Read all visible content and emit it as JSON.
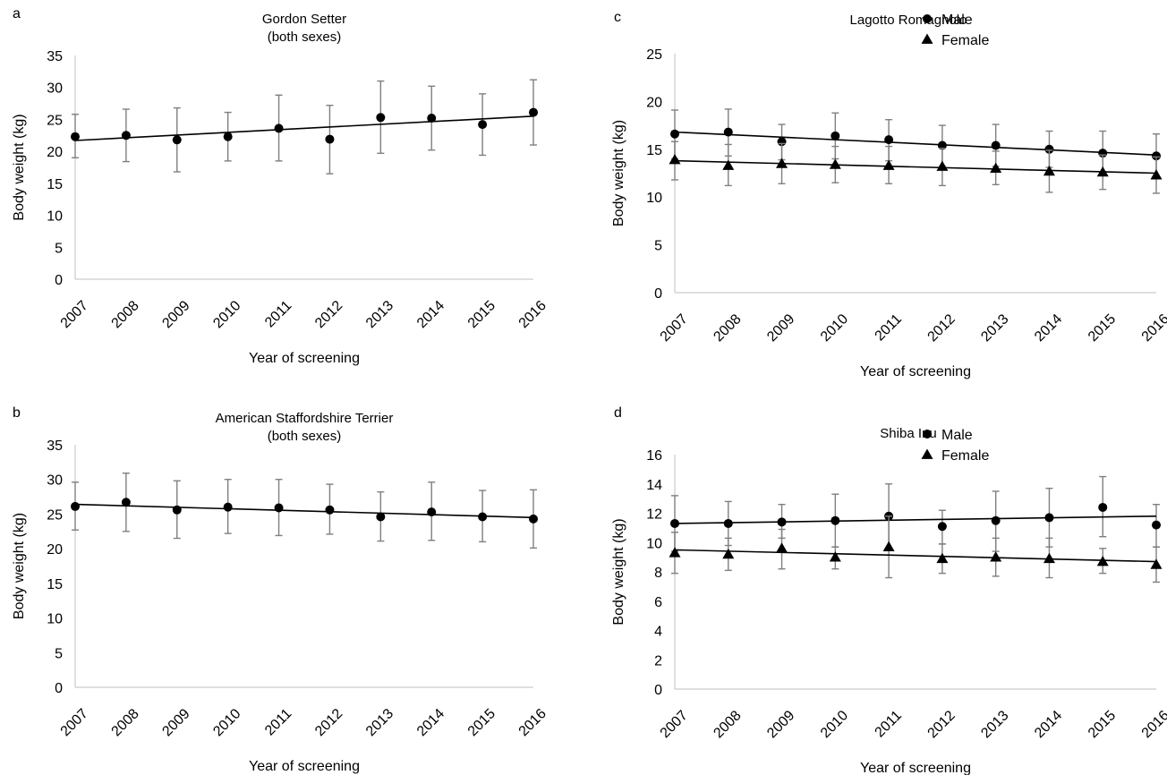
{
  "figure": {
    "panels": [
      {
        "letter": "a",
        "title_lines": [
          "Gordon Setter",
          "(both sexes)"
        ]
      },
      {
        "letter": "b",
        "title_lines": [
          "American Staffordshire Terrier",
          "(both sexes)"
        ]
      },
      {
        "letter": "c",
        "title_lines": [
          "Lagotto Romagnolo"
        ]
      },
      {
        "letter": "d",
        "title_lines": [
          "Shiba Inu"
        ]
      }
    ]
  },
  "chart_data": [
    {
      "type": "scatter",
      "panel": "a",
      "title": "Gordon Setter (both sexes)",
      "xlabel": "Year of screening",
      "ylabel": "Body weight (kg)",
      "ylim": [
        0,
        35
      ],
      "yticks": [
        0,
        5,
        10,
        15,
        20,
        25,
        30,
        35
      ],
      "categories": [
        "2007",
        "2008",
        "2009",
        "2010",
        "2011",
        "2012",
        "2013",
        "2014",
        "2015",
        "2016"
      ],
      "legend": "none",
      "grid": false,
      "error_bars": true,
      "trendline": "linear",
      "series": [
        {
          "marker": "circle",
          "values": [
            22.3,
            22.5,
            21.8,
            22.3,
            23.6,
            21.9,
            25.3,
            25.2,
            24.2,
            26.1
          ],
          "error_low": [
            19.0,
            18.4,
            16.8,
            18.5,
            18.5,
            16.5,
            19.7,
            20.2,
            19.4,
            21.0
          ],
          "error_high": [
            25.8,
            26.6,
            26.8,
            26.1,
            28.8,
            27.2,
            31.0,
            30.2,
            29.0,
            31.2
          ],
          "trend": [
            21.7,
            25.5
          ]
        }
      ]
    },
    {
      "type": "scatter",
      "panel": "b",
      "title": "American Staffordshire Terrier (both sexes)",
      "xlabel": "Year of screening",
      "ylabel": "Body weight (kg)",
      "ylim": [
        0,
        35
      ],
      "yticks": [
        0,
        5,
        10,
        15,
        20,
        25,
        30,
        35
      ],
      "categories": [
        "2007",
        "2008",
        "2009",
        "2010",
        "2011",
        "2012",
        "2013",
        "2014",
        "2015",
        "2016"
      ],
      "legend": "none",
      "grid": false,
      "error_bars": true,
      "trendline": "linear",
      "series": [
        {
          "marker": "circle",
          "values": [
            26.1,
            26.7,
            25.6,
            26.0,
            25.9,
            25.6,
            24.6,
            25.3,
            24.6,
            24.3
          ],
          "error_low": [
            22.7,
            22.5,
            21.5,
            22.2,
            21.9,
            22.1,
            21.1,
            21.2,
            21.0,
            20.1
          ],
          "error_high": [
            29.6,
            30.9,
            29.8,
            30.0,
            30.0,
            29.3,
            28.2,
            29.6,
            28.4,
            28.5
          ],
          "trend": [
            26.4,
            24.5
          ]
        }
      ]
    },
    {
      "type": "scatter",
      "panel": "c",
      "title": "Lagotto Romagnolo",
      "xlabel": "Year of screening",
      "ylabel": "Body weight (kg)",
      "ylim": [
        0,
        25
      ],
      "yticks": [
        0,
        5,
        10,
        15,
        20,
        25
      ],
      "categories": [
        "2007",
        "2008",
        "2009",
        "2010",
        "2011",
        "2012",
        "2013",
        "2014",
        "2015",
        "2016"
      ],
      "legend": "top-right",
      "grid": false,
      "error_bars": true,
      "trendline": "linear",
      "series": [
        {
          "name": "Male",
          "marker": "circle",
          "values": [
            16.6,
            16.8,
            15.8,
            16.4,
            16.0,
            15.4,
            15.4,
            15.0,
            14.6,
            14.3
          ],
          "error_low": [
            14.0,
            14.3,
            13.9,
            14.0,
            13.8,
            13.2,
            13.2,
            13.1,
            12.3,
            12.1
          ],
          "error_high": [
            19.1,
            19.2,
            17.6,
            18.8,
            18.1,
            17.5,
            17.6,
            16.9,
            16.9,
            16.6
          ],
          "trend": [
            16.8,
            14.4
          ]
        },
        {
          "name": "Female",
          "marker": "triangle",
          "values": [
            13.9,
            13.3,
            13.5,
            13.4,
            13.3,
            13.2,
            13.0,
            12.7,
            12.6,
            12.3
          ],
          "error_low": [
            11.8,
            11.2,
            11.4,
            11.5,
            11.4,
            11.2,
            11.3,
            10.5,
            10.8,
            10.4
          ],
          "error_high": [
            15.8,
            15.5,
            15.6,
            15.3,
            15.3,
            15.1,
            14.8,
            14.9,
            14.4,
            14.2
          ],
          "trend": [
            13.8,
            12.5
          ]
        }
      ]
    },
    {
      "type": "scatter",
      "panel": "d",
      "title": "Shiba Inu",
      "xlabel": "Year of screening",
      "ylabel": "Body weight (kg)",
      "ylim": [
        0,
        16
      ],
      "yticks": [
        0,
        2,
        4,
        6,
        8,
        10,
        12,
        14,
        16
      ],
      "categories": [
        "2007",
        "2008",
        "2009",
        "2010",
        "2011",
        "2012",
        "2013",
        "2014",
        "2015",
        "2016"
      ],
      "legend": "top-right",
      "grid": false,
      "error_bars": true,
      "trendline": "linear",
      "series": [
        {
          "name": "Male",
          "marker": "circle",
          "values": [
            11.3,
            11.3,
            11.4,
            11.5,
            11.8,
            11.1,
            11.5,
            11.7,
            12.4,
            11.2
          ],
          "error_low": [
            9.4,
            9.8,
            10.3,
            9.7,
            9.6,
            9.9,
            9.4,
            9.7,
            10.4,
            9.7
          ],
          "error_high": [
            13.2,
            12.8,
            12.6,
            13.3,
            14.0,
            12.2,
            13.5,
            13.7,
            14.5,
            12.6
          ],
          "trend": [
            11.3,
            11.8
          ]
        },
        {
          "name": "Female",
          "marker": "triangle",
          "values": [
            9.3,
            9.2,
            9.6,
            9.0,
            9.7,
            8.9,
            9.0,
            8.9,
            8.7,
            8.5
          ],
          "error_low": [
            7.9,
            8.1,
            8.2,
            8.2,
            7.6,
            7.9,
            7.7,
            7.6,
            7.9,
            7.3
          ],
          "error_high": [
            10.7,
            10.3,
            10.9,
            9.7,
            11.8,
            9.9,
            10.3,
            10.3,
            9.6,
            9.7
          ],
          "trend": [
            9.5,
            8.7
          ]
        }
      ]
    }
  ]
}
